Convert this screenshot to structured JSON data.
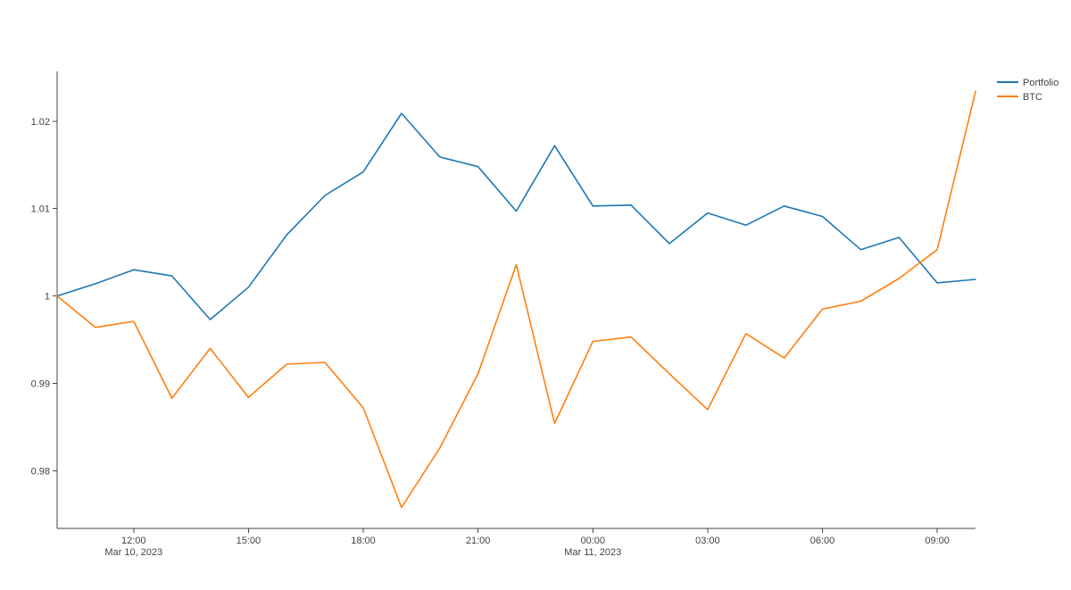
{
  "chart_data": {
    "type": "line",
    "title": "",
    "xlabel": "",
    "ylabel": "",
    "x": [
      "2023-03-10 10:00",
      "2023-03-10 11:00",
      "2023-03-10 12:00",
      "2023-03-10 13:00",
      "2023-03-10 14:00",
      "2023-03-10 15:00",
      "2023-03-10 16:00",
      "2023-03-10 17:00",
      "2023-03-10 18:00",
      "2023-03-10 19:00",
      "2023-03-10 20:00",
      "2023-03-10 21:00",
      "2023-03-10 22:00",
      "2023-03-10 23:00",
      "2023-03-11 00:00",
      "2023-03-11 01:00",
      "2023-03-11 02:00",
      "2023-03-11 03:00",
      "2023-03-11 04:00",
      "2023-03-11 05:00",
      "2023-03-11 06:00",
      "2023-03-11 07:00",
      "2023-03-11 08:00",
      "2023-03-11 09:00",
      "2023-03-11 10:00"
    ],
    "series": [
      {
        "name": "Portfolio",
        "color": "#1f77b4",
        "values": [
          1.0,
          1.0014,
          1.003,
          1.0023,
          0.9973,
          1.001,
          1.007,
          1.0115,
          1.0142,
          1.0209,
          1.0159,
          1.0148,
          1.0097,
          1.0172,
          1.0103,
          1.0104,
          1.006,
          1.0095,
          1.0081,
          1.0103,
          1.0091,
          1.0053,
          1.0067,
          1.0015,
          1.0019
        ]
      },
      {
        "name": "BTC",
        "color": "#ff7f0e",
        "values": [
          1.0,
          0.9964,
          0.9971,
          0.9883,
          0.994,
          0.9884,
          0.9922,
          0.9924,
          0.9872,
          0.9758,
          0.9826,
          0.9911,
          1.0036,
          0.9854,
          0.9948,
          0.9953,
          0.9911,
          0.987,
          0.9957,
          0.9929,
          0.9985,
          0.9994,
          1.002,
          1.0053,
          1.0234
        ]
      }
    ],
    "ylim": [
      0.9734,
      1.0257
    ],
    "xlim": [
      "2023-03-10 10:00",
      "2023-03-11 10:00"
    ],
    "yticks": [
      {
        "value": 0.98,
        "label": "0.98"
      },
      {
        "value": 0.99,
        "label": "0.99"
      },
      {
        "value": 1.0,
        "label": "1"
      },
      {
        "value": 1.01,
        "label": "1.01"
      },
      {
        "value": 1.02,
        "label": "1.02"
      }
    ],
    "xticks": [
      {
        "at": "2023-03-10 12:00",
        "label": "12:00",
        "sublabel": "Mar 10, 2023"
      },
      {
        "at": "2023-03-10 15:00",
        "label": "15:00",
        "sublabel": ""
      },
      {
        "at": "2023-03-10 18:00",
        "label": "18:00",
        "sublabel": ""
      },
      {
        "at": "2023-03-10 21:00",
        "label": "21:00",
        "sublabel": ""
      },
      {
        "at": "2023-03-11 00:00",
        "label": "00:00",
        "sublabel": "Mar 11, 2023"
      },
      {
        "at": "2023-03-11 03:00",
        "label": "03:00",
        "sublabel": ""
      },
      {
        "at": "2023-03-11 06:00",
        "label": "06:00",
        "sublabel": ""
      },
      {
        "at": "2023-03-11 09:00",
        "label": "09:00",
        "sublabel": ""
      }
    ],
    "grid": false,
    "legend_position": "top-right"
  }
}
